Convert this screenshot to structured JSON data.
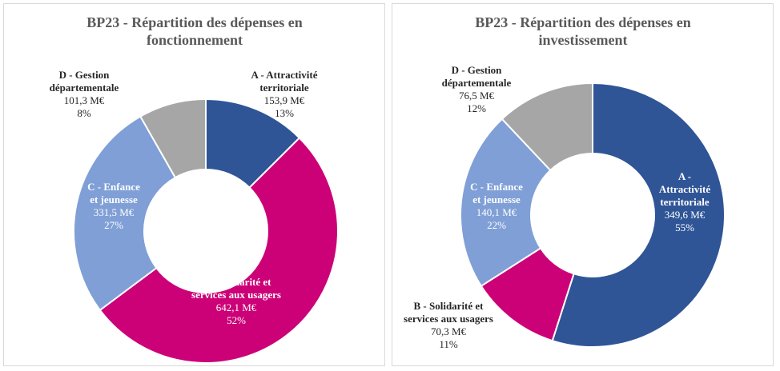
{
  "chart_data": [
    {
      "type": "pie",
      "variant": "donut",
      "title_lines": [
        "BP23 - Répartition des dépenses en",
        "fonctionnement"
      ],
      "unit": "M€",
      "slices": [
        {
          "name_lines": [
            "A - Attractivité",
            "territoriale"
          ],
          "value_text": "153,9 M€",
          "percent_text": "13%",
          "value": 153.9,
          "color": "#2F5597",
          "label_style": "dark"
        },
        {
          "name_lines": [
            "B - Solidarité et",
            "services aux usagers"
          ],
          "value_text": "642,1 M€",
          "percent_text": "52%",
          "value": 642.1,
          "color": "#CC0077",
          "label_style": "light"
        },
        {
          "name_lines": [
            "C - Enfance",
            "et jeunesse"
          ],
          "value_text": "331,5 M€",
          "percent_text": "27%",
          "value": 331.5,
          "color": "#7F9FD6",
          "label_style": "light"
        },
        {
          "name_lines": [
            "D - Gestion",
            "départementale"
          ],
          "value_text": "101,3 M€",
          "percent_text": "8%",
          "value": 101.3,
          "color": "#A6A6A6",
          "label_style": "dark"
        }
      ]
    },
    {
      "type": "pie",
      "variant": "donut",
      "title_lines": [
        "BP23 - Répartition des dépenses en",
        "investissement"
      ],
      "unit": "M€",
      "slices": [
        {
          "name_lines": [
            "A -",
            "Attractivité",
            "territoriale"
          ],
          "value_text": "349,6 M€",
          "percent_text": "55%",
          "value": 349.6,
          "color": "#2F5597",
          "label_style": "light"
        },
        {
          "name_lines": [
            "B - Solidarité et",
            "services aux usagers"
          ],
          "value_text": "70,3 M€",
          "percent_text": "11%",
          "value": 70.3,
          "color": "#CC0077",
          "label_style": "dark"
        },
        {
          "name_lines": [
            "C - Enfance",
            "et jeunesse"
          ],
          "value_text": "140,1 M€",
          "percent_text": "22%",
          "value": 140.1,
          "color": "#7F9FD6",
          "label_style": "light"
        },
        {
          "name_lines": [
            "D - Gestion",
            "départementale"
          ],
          "value_text": "76,5 M€",
          "percent_text": "12%",
          "value": 76.5,
          "color": "#A6A6A6",
          "label_style": "dark"
        }
      ]
    }
  ]
}
